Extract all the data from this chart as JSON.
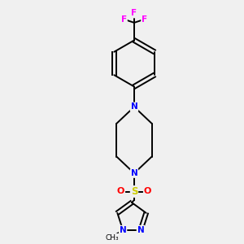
{
  "background_color": "#f0f0f0",
  "bond_color": "#000000",
  "N_color": "#0000ff",
  "O_color": "#ff0000",
  "S_color": "#cccc00",
  "F_color": "#ff00ff",
  "C_color": "#000000",
  "figsize": [
    3.0,
    3.0
  ],
  "dpi": 100,
  "xlim": [
    0,
    10
  ],
  "ylim": [
    0,
    10
  ],
  "lw": 1.4
}
